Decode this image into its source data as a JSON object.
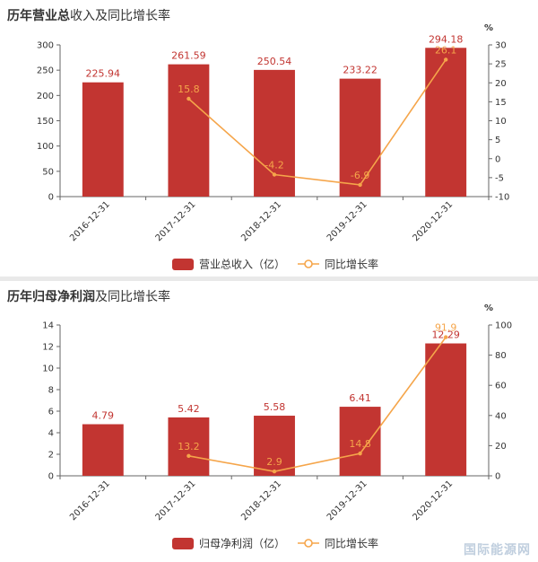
{
  "colors": {
    "bar": "#c23531",
    "line": "#f5a54a",
    "axis": "#666666"
  },
  "chart_data": [
    {
      "type": "bar",
      "title_bold": "历年营业总",
      "title_rest": "收入及同比增长率",
      "categories": [
        "2016-12-31",
        "2017-12-31",
        "2018-12-31",
        "2019-12-31",
        "2020-12-31"
      ],
      "series": [
        {
          "name": "营业总收入（亿）",
          "type": "bar",
          "values": [
            225.94,
            261.59,
            250.54,
            233.22,
            294.18
          ],
          "labels": [
            "225.94",
            "261.59",
            "250.54",
            "233.22",
            "294.18"
          ]
        },
        {
          "name": "同比增长率",
          "type": "line",
          "axis": "right",
          "values": [
            null,
            15.8,
            -4.2,
            -6.9,
            26.1
          ],
          "labels": [
            "",
            "15.8",
            "-4.2",
            "-6.9",
            "26.1"
          ]
        }
      ],
      "ylim": [
        0,
        300
      ],
      "yticks": [
        "0",
        "50",
        "100",
        "150",
        "200",
        "250",
        "300"
      ],
      "y2lim": [
        -10,
        30
      ],
      "y2ticks": [
        "-10",
        "-5",
        "0",
        "5",
        "10",
        "15",
        "20",
        "25",
        "30"
      ],
      "y2unit": "%",
      "legend": "bottom-center"
    },
    {
      "type": "bar",
      "title_bold": "历年归母净利润",
      "title_rest": "及同比增长率",
      "categories": [
        "2016-12-31",
        "2017-12-31",
        "2018-12-31",
        "2019-12-31",
        "2020-12-31"
      ],
      "series": [
        {
          "name": "归母净利润（亿）",
          "type": "bar",
          "values": [
            4.79,
            5.42,
            5.58,
            6.41,
            12.29
          ],
          "labels": [
            "4.79",
            "5.42",
            "5.58",
            "6.41",
            "12.29"
          ]
        },
        {
          "name": "同比增长率",
          "type": "line",
          "axis": "right",
          "values": [
            null,
            13.2,
            2.9,
            14.8,
            91.9
          ],
          "labels": [
            "",
            "13.2",
            "2.9",
            "14.8",
            "91.9"
          ]
        }
      ],
      "ylim": [
        0,
        14
      ],
      "yticks": [
        "0",
        "2",
        "4",
        "6",
        "8",
        "10",
        "12",
        "14"
      ],
      "y2lim": [
        0,
        100
      ],
      "y2ticks": [
        "0",
        "20",
        "40",
        "60",
        "80",
        "100"
      ],
      "y2unit": "%",
      "legend": "bottom-center"
    }
  ],
  "watermark": "国际能源网"
}
